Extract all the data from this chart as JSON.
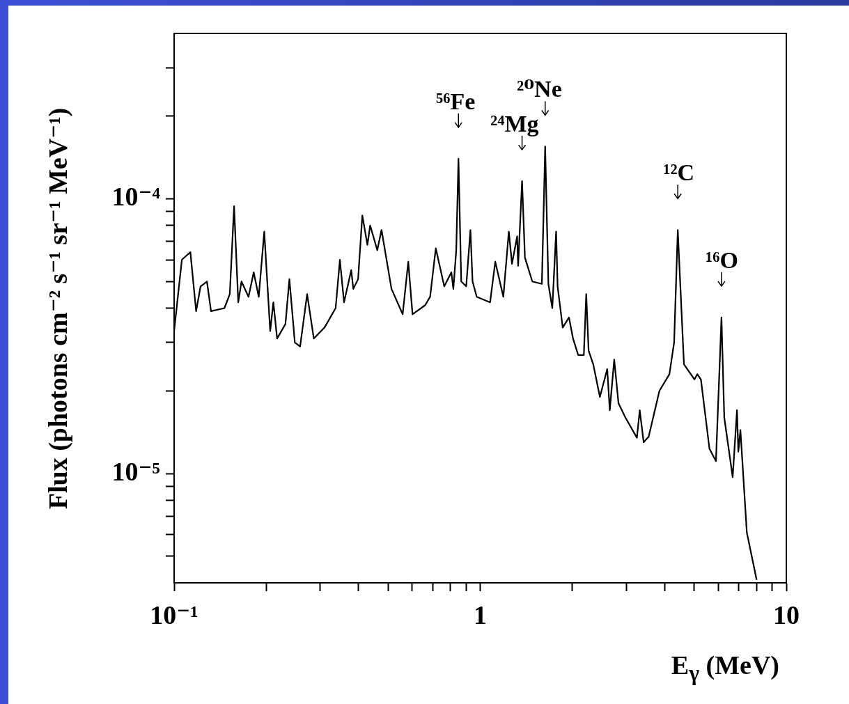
{
  "chart_data": {
    "type": "line",
    "xlabel": "E$_{γ}$ (MeV)",
    "ylabel": "Flux (photons cm⁻² s⁻¹ sr⁻¹ MeV⁻¹)",
    "log": "xy",
    "marker": "none",
    "line_style": "solid",
    "legend": false,
    "grid": false,
    "xlim": [
      0.1,
      10
    ],
    "ylim": [
      4e-06,
      0.0004
    ],
    "xticks": [
      {
        "value": 0.1,
        "label": "10⁻¹"
      },
      {
        "value": 0.2,
        "label": null
      },
      {
        "value": 0.3,
        "label": null
      },
      {
        "value": 0.4,
        "label": null
      },
      {
        "value": 0.5,
        "label": null
      },
      {
        "value": 0.6,
        "label": null
      },
      {
        "value": 0.7,
        "label": null
      },
      {
        "value": 0.8,
        "label": null
      },
      {
        "value": 0.9,
        "label": null
      },
      1,
      {
        "value": 2,
        "label": null
      },
      {
        "value": 3,
        "label": null
      },
      {
        "value": 4,
        "label": null
      },
      {
        "value": 5,
        "label": null
      },
      {
        "value": 6,
        "label": null
      },
      {
        "value": 7,
        "label": null
      },
      {
        "value": 8,
        "label": null
      },
      {
        "value": 9,
        "label": null
      },
      10
    ],
    "yticks": [
      {
        "value": 5e-06,
        "label": null
      },
      {
        "value": 6e-06,
        "label": null
      },
      {
        "value": 7e-06,
        "label": null
      },
      {
        "value": 8e-06,
        "label": null
      },
      {
        "value": 9e-06,
        "label": null
      },
      {
        "value": 1e-05,
        "label": "10⁻⁵"
      },
      {
        "value": 2e-05,
        "label": null
      },
      {
        "value": 3e-05,
        "label": null
      },
      {
        "value": 4e-05,
        "label": null
      },
      {
        "value": 5e-05,
        "label": null
      },
      {
        "value": 6e-05,
        "label": null
      },
      {
        "value": 7e-05,
        "label": null
      },
      {
        "value": 8e-05,
        "label": null
      },
      {
        "value": 9e-05,
        "label": null
      },
      {
        "value": 0.0001,
        "label": "10⁻⁴"
      },
      {
        "value": 0.0002,
        "label": null
      },
      {
        "value": 0.0003,
        "label": null
      }
    ],
    "annotations": [
      {
        "text": "⁵⁶Fe",
        "x": 0.849,
        "y": 0.00014
      },
      {
        "text": "²⁴Mg",
        "x": 1.37,
        "y": 0.000116
      },
      {
        "text": "²⁰Ne",
        "x": 1.63,
        "y": 0.000155
      },
      {
        "text": "¹²C",
        "x": 4.42,
        "y": 7.7e-05
      },
      {
        "text": "¹⁶O",
        "x": 6.14,
        "y": 3.7e-05
      }
    ],
    "series": [
      {
        "color": "#000000",
        "x": [
          0.1,
          0.106,
          0.113,
          0.118,
          0.122,
          0.128,
          0.132,
          0.146,
          0.152,
          0.157,
          0.162,
          0.166,
          0.175,
          0.182,
          0.189,
          0.197,
          0.206,
          0.211,
          0.217,
          0.231,
          0.238,
          0.248,
          0.258,
          0.272,
          0.286,
          0.31,
          0.337,
          0.348,
          0.359,
          0.379,
          0.385,
          0.399,
          0.412,
          0.428,
          0.437,
          0.461,
          0.476,
          0.513,
          0.558,
          0.582,
          0.601,
          0.661,
          0.686,
          0.716,
          0.763,
          0.805,
          0.817,
          0.835,
          0.849,
          0.867,
          0.9,
          0.929,
          0.944,
          0.974,
          1.077,
          1.12,
          1.19,
          1.24,
          1.27,
          1.32,
          1.33,
          1.37,
          1.4,
          1.48,
          1.59,
          1.63,
          1.67,
          1.72,
          1.77,
          1.79,
          1.86,
          1.95,
          2.01,
          2.09,
          2.18,
          2.22,
          2.26,
          2.34,
          2.46,
          2.6,
          2.65,
          2.74,
          2.83,
          2.98,
          3.25,
          3.32,
          3.42,
          3.55,
          3.85,
          4.15,
          4.3,
          4.42,
          4.63,
          5.01,
          5.12,
          5.26,
          5.61,
          5.89,
          6.14,
          6.27,
          6.68,
          6.9,
          6.97,
          7.08,
          7.43,
          8.0
        ],
        "values": [
          3.3e-05,
          6e-05,
          6.4e-05,
          3.9e-05,
          4.8e-05,
          5e-05,
          3.9e-05,
          4e-05,
          4.5e-05,
          9.4e-05,
          4.2e-05,
          5e-05,
          4.4e-05,
          5.4e-05,
          4.4e-05,
          7.6e-05,
          3.3e-05,
          4.2e-05,
          3.1e-05,
          3.5e-05,
          5.1e-05,
          3e-05,
          2.9e-05,
          4.5e-05,
          3.1e-05,
          3.4e-05,
          4e-05,
          6e-05,
          4.2e-05,
          5.5e-05,
          4.7e-05,
          5.1e-05,
          8.7e-05,
          6.8e-05,
          8e-05,
          6.5e-05,
          7.7e-05,
          4.7e-05,
          3.8e-05,
          5.9e-05,
          3.8e-05,
          4.1e-05,
          4.4e-05,
          6.6e-05,
          4.8e-05,
          5.4e-05,
          4.7e-05,
          6.5e-05,
          0.00014,
          5e-05,
          4.8e-05,
          7.7e-05,
          5e-05,
          4.4e-05,
          4.2e-05,
          5.9e-05,
          4.4e-05,
          7.6e-05,
          5.8e-05,
          7.3e-05,
          5.7e-05,
          0.000116,
          6.1e-05,
          5e-05,
          4.9e-05,
          0.000155,
          4.9e-05,
          4e-05,
          7.6e-05,
          4.8e-05,
          3.4e-05,
          3.7e-05,
          3.1e-05,
          2.7e-05,
          2.7e-05,
          4.5e-05,
          2.8e-05,
          2.5e-05,
          1.9e-05,
          2.4e-05,
          1.7e-05,
          2.6e-05,
          1.8e-05,
          1.6e-05,
          1.35e-05,
          1.7e-05,
          1.3e-05,
          1.36e-05,
          2e-05,
          2.3e-05,
          3e-05,
          7.7e-05,
          2.5e-05,
          2.2e-05,
          2.3e-05,
          2.2e-05,
          1.23e-05,
          1.11e-05,
          3.7e-05,
          1.6e-05,
          9.7e-06,
          1.7e-05,
          1.2e-05,
          1.44e-05,
          6.1e-06,
          4.1e-06
        ]
      }
    ]
  }
}
